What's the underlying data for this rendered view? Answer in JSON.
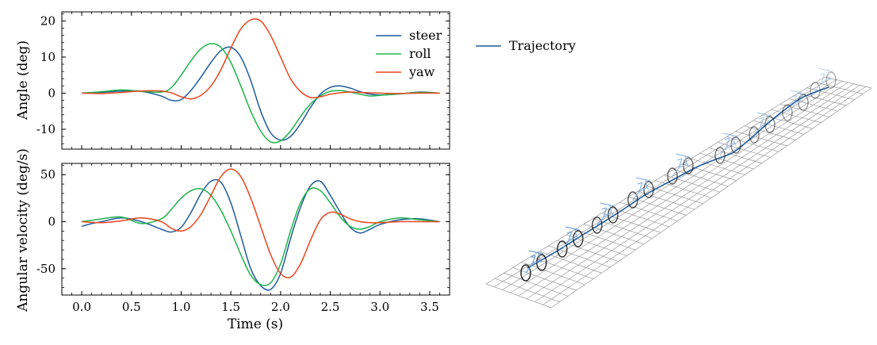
{
  "chart_data": [
    {
      "type": "line",
      "ylabel": "Angle (deg)",
      "xlabel": "",
      "xlim": [
        -0.2,
        3.7
      ],
      "ylim": [
        -15.5,
        22.5
      ],
      "xticks": [
        "0.0",
        "0.5",
        "1.0",
        "1.5",
        "2.0",
        "2.5",
        "3.0",
        "3.5"
      ],
      "yticks": [
        "20",
        "10",
        "0",
        "-10"
      ],
      "legend": "top-right",
      "grid": false,
      "series": [
        {
          "name": "steer",
          "color": "#1f5b9b",
          "x": [
            0,
            0.2,
            0.4,
            0.6,
            0.8,
            0.9,
            1.0,
            1.1,
            1.2,
            1.3,
            1.4,
            1.5,
            1.6,
            1.7,
            1.8,
            1.9,
            2.0,
            2.1,
            2.2,
            2.3,
            2.4,
            2.5,
            2.6,
            2.7,
            2.8,
            2.9,
            3.0,
            3.2,
            3.4,
            3.6
          ],
          "y": [
            0,
            0.2,
            0.6,
            0.5,
            -0.8,
            -2.0,
            -1.8,
            0.8,
            4.5,
            8.5,
            11.8,
            12.7,
            10.0,
            3.5,
            -5.0,
            -11.0,
            -13.0,
            -12.0,
            -8.5,
            -4.0,
            -0.3,
            1.6,
            2.0,
            1.4,
            0.4,
            -0.3,
            -0.5,
            -0.2,
            0.3,
            0
          ]
        },
        {
          "name": "roll",
          "color": "#1fb34a",
          "x": [
            0,
            0.2,
            0.4,
            0.6,
            0.8,
            0.9,
            1.0,
            1.1,
            1.2,
            1.3,
            1.4,
            1.5,
            1.6,
            1.7,
            1.8,
            1.9,
            2.0,
            2.1,
            2.2,
            2.3,
            2.4,
            2.5,
            2.6,
            2.7,
            2.8,
            2.9,
            3.0,
            3.2,
            3.4,
            3.6
          ],
          "y": [
            0,
            0.4,
            0.9,
            0.5,
            0.3,
            1.5,
            5.0,
            9.0,
            12.3,
            13.7,
            12.7,
            8.5,
            2.0,
            -5.0,
            -10.5,
            -13.5,
            -13.2,
            -10.5,
            -6.5,
            -3.0,
            -0.8,
            0.5,
            0.7,
            0.3,
            -0.3,
            -0.8,
            -0.6,
            -0.2,
            0.2,
            0
          ]
        },
        {
          "name": "yaw",
          "color": "#e8461f",
          "x": [
            0,
            0.2,
            0.4,
            0.6,
            0.8,
            0.9,
            1.0,
            1.1,
            1.2,
            1.3,
            1.4,
            1.5,
            1.6,
            1.7,
            1.8,
            1.9,
            2.0,
            2.1,
            2.2,
            2.3,
            2.4,
            2.5,
            2.6,
            2.7,
            2.8,
            2.9,
            3.0,
            3.2,
            3.4,
            3.6
          ],
          "y": [
            0,
            -0.1,
            0.2,
            0.6,
            0.6,
            0.1,
            -1.0,
            -1.6,
            -0.6,
            2.0,
            6.5,
            12.5,
            17.8,
            20.3,
            20.0,
            16.0,
            10.0,
            4.0,
            0.5,
            -1.2,
            -1.0,
            -0.3,
            0.1,
            0.3,
            0.2,
            0.1,
            0,
            -0.1,
            0,
            0
          ]
        }
      ]
    },
    {
      "type": "line",
      "ylabel": "Angular velocity (deg/s)",
      "xlabel": "Time (s)",
      "xlim": [
        -0.2,
        3.7
      ],
      "ylim": [
        -78,
        62
      ],
      "xticks": [
        "0.0",
        "0.5",
        "1.0",
        "1.5",
        "2.0",
        "2.5",
        "3.0",
        "3.5"
      ],
      "yticks": [
        "50",
        "0",
        "-50"
      ],
      "grid": false,
      "series": [
        {
          "name": "steer",
          "color": "#1f5b9b",
          "x": [
            0,
            0.1,
            0.2,
            0.4,
            0.6,
            0.8,
            0.9,
            1.0,
            1.1,
            1.2,
            1.3,
            1.4,
            1.5,
            1.6,
            1.7,
            1.8,
            1.9,
            2.0,
            2.1,
            2.2,
            2.3,
            2.4,
            2.5,
            2.6,
            2.7,
            2.8,
            2.9,
            3.0,
            3.2,
            3.4,
            3.6
          ],
          "y": [
            -5,
            -2,
            0,
            4,
            0,
            -8,
            -11,
            -6,
            10,
            30,
            43,
            42,
            20,
            -15,
            -50,
            -68,
            -72,
            -55,
            -18,
            15,
            38,
            43,
            28,
            10,
            -6,
            -12,
            -8,
            -3,
            2,
            3,
            0
          ]
        },
        {
          "name": "roll",
          "color": "#1fb34a",
          "x": [
            0,
            0.2,
            0.4,
            0.6,
            0.8,
            0.9,
            1.0,
            1.1,
            1.2,
            1.3,
            1.4,
            1.5,
            1.6,
            1.7,
            1.8,
            1.9,
            2.0,
            2.1,
            2.2,
            2.3,
            2.4,
            2.5,
            2.6,
            2.7,
            2.8,
            2.9,
            3.0,
            3.2,
            3.4,
            3.6
          ],
          "y": [
            0,
            3,
            5,
            -2,
            3,
            13,
            25,
            33,
            35,
            28,
            12,
            -10,
            -35,
            -57,
            -67,
            -65,
            -45,
            -10,
            20,
            35,
            33,
            20,
            5,
            -5,
            -8,
            -5,
            0,
            4,
            2,
            0
          ]
        },
        {
          "name": "yaw",
          "color": "#e8461f",
          "x": [
            0,
            0.2,
            0.4,
            0.6,
            0.8,
            0.9,
            1.0,
            1.1,
            1.2,
            1.3,
            1.4,
            1.5,
            1.6,
            1.7,
            1.8,
            1.9,
            2.0,
            2.1,
            2.2,
            2.3,
            2.4,
            2.5,
            2.6,
            2.7,
            2.8,
            2.9,
            3.0,
            3.2,
            3.4,
            3.6
          ],
          "y": [
            0,
            -1,
            1,
            4,
            0,
            -7,
            -10,
            -5,
            8,
            28,
            48,
            56,
            48,
            25,
            -5,
            -35,
            -55,
            -59,
            -45,
            -20,
            2,
            10,
            8,
            3,
            0,
            -1,
            -1,
            0,
            0,
            0
          ]
        }
      ]
    }
  ],
  "scene": {
    "legend_label": "Trajectory",
    "trajectory_color": "#1f5b9b",
    "bicycle_colors": [
      "#1a1a1a",
      "#6fa3d8"
    ]
  }
}
